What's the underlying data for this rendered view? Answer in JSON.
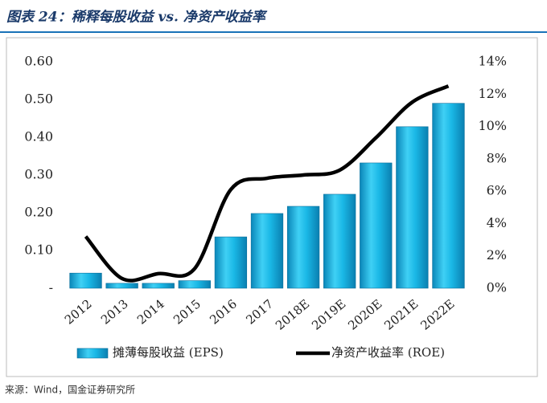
{
  "header": "图表 24：稀释每股收益 vs. 净资产收益率",
  "source": "来源：Wind，国金证券研究所",
  "chart_data": {
    "type": "bar-line",
    "categories": [
      "2012",
      "2013",
      "2014",
      "2015",
      "2016",
      "2017",
      "2018E",
      "2019E",
      "2020E",
      "2021E",
      "2022E"
    ],
    "series": [
      {
        "name": "摊薄每股收益 (EPS)",
        "type": "bar",
        "color": "#1ab8e6",
        "values": [
          0.04,
          0.013,
          0.013,
          0.02,
          0.136,
          0.198,
          0.217,
          0.249,
          0.332,
          0.428,
          0.49
        ]
      },
      {
        "name": "净资产收益率 (ROE)",
        "type": "line",
        "axis": "y2",
        "color": "#000000",
        "values": [
          3.2,
          0.6,
          0.9,
          1.2,
          6.1,
          6.8,
          7.0,
          7.3,
          9.3,
          11.5,
          12.5
        ]
      }
    ],
    "ylim": [
      0,
      0.6
    ],
    "yticks": [
      {
        "value": 0,
        "label": "-"
      },
      {
        "value": 0.1,
        "label": "0.10"
      },
      {
        "value": 0.2,
        "label": "0.20"
      },
      {
        "value": 0.3,
        "label": "0.30"
      },
      {
        "value": 0.4,
        "label": "0.40"
      },
      {
        "value": 0.5,
        "label": "0.50"
      },
      {
        "value": 0.6,
        "label": "0.60"
      }
    ],
    "y2lim": [
      0,
      14
    ],
    "y2ticks": [
      {
        "value": 0,
        "label": "0%"
      },
      {
        "value": 2,
        "label": "2%"
      },
      {
        "value": 4,
        "label": "4%"
      },
      {
        "value": 6,
        "label": "6%"
      },
      {
        "value": 8,
        "label": "8%"
      },
      {
        "value": 10,
        "label": "10%"
      },
      {
        "value": 12,
        "label": "12%"
      },
      {
        "value": 14,
        "label": "14%"
      }
    ]
  }
}
